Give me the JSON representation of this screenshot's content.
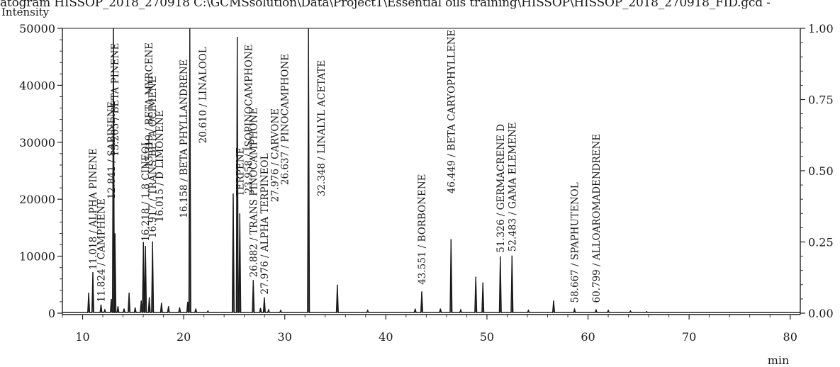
{
  "header": "atogram HISSOP_2018_270918 C:\\GCMSsolution\\Data\\Project1\\Essential oils training\\HISSOP\\HISSOP_2018_270918_FID.gcd -",
  "chart_data": {
    "type": "line",
    "ylabel": "Intensity",
    "xlabel": "min",
    "xlim": [
      8,
      81
    ],
    "ylim": [
      0,
      50000
    ],
    "y2lim": [
      0,
      1
    ],
    "x_ticks": [
      "10",
      "20",
      "30",
      "40",
      "50",
      "60",
      "70",
      "80"
    ],
    "y_ticks": [
      "0",
      "10000",
      "20000",
      "30000",
      "40000",
      "50000"
    ],
    "y2_ticks": [
      "0.00",
      "0.25",
      "0.50",
      "0.75",
      "1.00"
    ],
    "baseline": 100,
    "peaks": [
      {
        "x": 10.6,
        "y": 3600
      },
      {
        "x": 11.018,
        "y": 7200
      },
      {
        "x": 11.824,
        "y": 1500
      },
      {
        "x": 12.2,
        "y": 600
      },
      {
        "x": 12.841,
        "y": 2500
      },
      {
        "x": 13.05,
        "y": 52000
      },
      {
        "x": 13.205,
        "y": 14000
      },
      {
        "x": 13.5,
        "y": 1200
      },
      {
        "x": 14.1,
        "y": 800
      },
      {
        "x": 14.6,
        "y": 3600
      },
      {
        "x": 15.2,
        "y": 1000
      },
      {
        "x": 15.8,
        "y": 2200
      },
      {
        "x": 16.015,
        "y": 12500
      },
      {
        "x": 16.218,
        "y": 11800
      },
      {
        "x": 16.6,
        "y": 2800
      },
      {
        "x": 16.917,
        "y": 12600
      },
      {
        "x": 17.8,
        "y": 1800
      },
      {
        "x": 18.5,
        "y": 1200
      },
      {
        "x": 19.6,
        "y": 1000
      },
      {
        "x": 20.4,
        "y": 2000
      },
      {
        "x": 20.61,
        "y": 52000
      },
      {
        "x": 21.2,
        "y": 800
      },
      {
        "x": 22.4,
        "y": 400
      },
      {
        "x": 24.9,
        "y": 21000
      },
      {
        "x": 25.3,
        "y": 48500
      },
      {
        "x": 25.55,
        "y": 17500
      },
      {
        "x": 26.882,
        "y": 5800
      },
      {
        "x": 27.6,
        "y": 900
      },
      {
        "x": 27.976,
        "y": 2800
      },
      {
        "x": 28.4,
        "y": 600
      },
      {
        "x": 29.6,
        "y": 500
      },
      {
        "x": 32.348,
        "y": 52000
      },
      {
        "x": 35.2,
        "y": 5000
      },
      {
        "x": 38.2,
        "y": 500
      },
      {
        "x": 42.9,
        "y": 800
      },
      {
        "x": 43.551,
        "y": 3800
      },
      {
        "x": 45.4,
        "y": 800
      },
      {
        "x": 46.449,
        "y": 13000
      },
      {
        "x": 47.4,
        "y": 600
      },
      {
        "x": 48.9,
        "y": 6400
      },
      {
        "x": 49.6,
        "y": 5400
      },
      {
        "x": 51.326,
        "y": 10000
      },
      {
        "x": 52.483,
        "y": 10100
      },
      {
        "x": 54.1,
        "y": 500
      },
      {
        "x": 56.6,
        "y": 2200
      },
      {
        "x": 58.667,
        "y": 700
      },
      {
        "x": 60.799,
        "y": 600
      },
      {
        "x": 62.0,
        "y": 500
      },
      {
        "x": 64.2,
        "y": 400
      },
      {
        "x": 65.8,
        "y": 300
      }
    ],
    "annotations": [
      {
        "text": "11.018 / ALPHA PINENE",
        "x": 11.018,
        "y_bottom": 7600
      },
      {
        "text": "11.824 / CAMPHENE",
        "x": 11.824,
        "y_bottom": 1900
      },
      {
        "text": "12.841 / SABINENE",
        "x": 12.841,
        "y_bottom": 20000
      },
      {
        "text": "13.205 / BETA PINENE",
        "x": 13.205,
        "y_bottom": 27500
      },
      {
        "text": "16.218 / 1.8 CINEOL",
        "x": 16.218,
        "y_bottom": 12600
      },
      {
        "text": "13.319 / BETA MYRCENE",
        "x": 16.55,
        "y_bottom": 25500
      },
      {
        "text": "16.917 / TRANS BETA OCIMENE",
        "x": 16.917,
        "y_bottom": 13200
      },
      {
        "text": "16.015 / D LIMONENE",
        "x": 17.6,
        "y_bottom": 16000
      },
      {
        "text": "16.158 / BETA PHYLLANDRENE",
        "x": 20.0,
        "y_bottom": 16700
      },
      {
        "text": "20.610 / LINALOOL",
        "x": 21.9,
        "y_bottom": 29800
      },
      {
        "text": "TERPENE",
        "x": 25.55,
        "y_bottom": 20500
      },
      {
        "text": "23.958 / ISOPINOCAMPHONE",
        "x": 26.4,
        "y_bottom": 21000
      },
      {
        "text": "26.882 / TRANS PINOCAMPHONE",
        "x": 26.882,
        "y_bottom": 6300
      },
      {
        "text": "27.976 / ALPHA TERPINEOL",
        "x": 27.976,
        "y_bottom": 3300
      },
      {
        "text": "27.976 / CARVONE",
        "x": 29.0,
        "y_bottom": 19500
      },
      {
        "text": "26.637 / PINOCAMPHONE",
        "x": 30.0,
        "y_bottom": 22500
      },
      {
        "text": "32.348 / LINALYL ACETATE",
        "x": 33.6,
        "y_bottom": 20500
      },
      {
        "text": "43.551 / BORBONENE",
        "x": 43.551,
        "y_bottom": 5000
      },
      {
        "text": "46.449 / BETA CARYOPHYLLENE",
        "x": 46.449,
        "y_bottom": 21000
      },
      {
        "text": "51.326 / GERMACRENE D",
        "x": 51.326,
        "y_bottom": 10600
      },
      {
        "text": "52.483 / GAMA ELEMENE",
        "x": 52.483,
        "y_bottom": 10800
      },
      {
        "text": "58.667 / SPAPHUTENOL",
        "x": 58.667,
        "y_bottom": 1800
      },
      {
        "text": "60.799 / ALLOAROMADENDRENE",
        "x": 60.799,
        "y_bottom": 1800
      }
    ]
  }
}
